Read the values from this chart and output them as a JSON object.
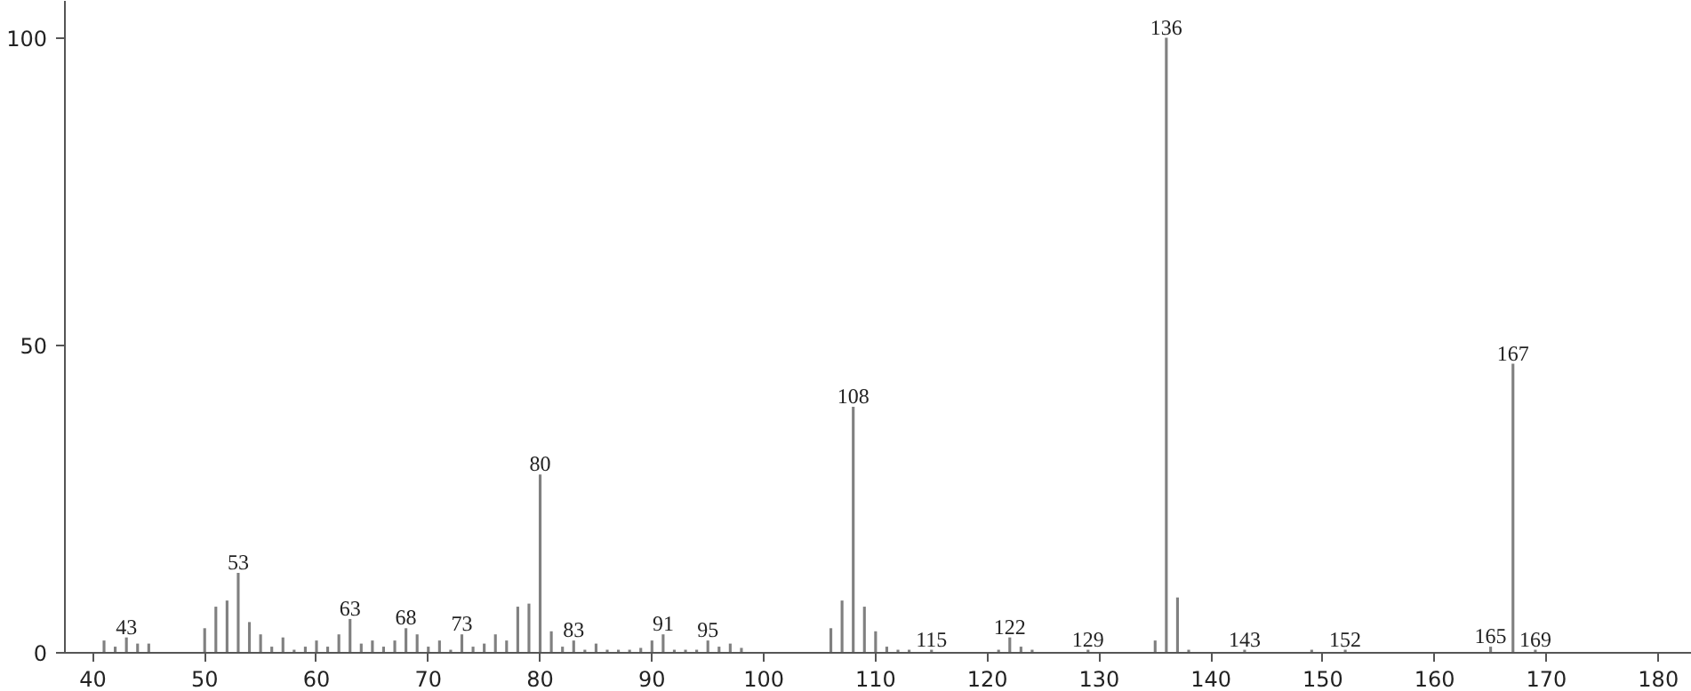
{
  "chart_data": {
    "type": "bar",
    "color": "#808080",
    "x": [
      41,
      42,
      43,
      44,
      45,
      50,
      51,
      52,
      53,
      54,
      55,
      56,
      57,
      58,
      59,
      60,
      61,
      62,
      63,
      64,
      65,
      66,
      67,
      68,
      69,
      70,
      71,
      72,
      73,
      74,
      75,
      76,
      77,
      78,
      79,
      80,
      81,
      82,
      83,
      84,
      85,
      86,
      87,
      88,
      89,
      90,
      91,
      92,
      93,
      94,
      95,
      96,
      97,
      98,
      106,
      107,
      108,
      109,
      110,
      111,
      112,
      113,
      115,
      121,
      122,
      123,
      124,
      129,
      135,
      136,
      137,
      138,
      143,
      149,
      152,
      165,
      167,
      169
    ],
    "values": [
      2,
      1,
      2.5,
      1.5,
      1.5,
      4,
      7.5,
      8.5,
      13,
      5,
      3,
      1,
      2.5,
      0.5,
      1,
      2,
      1,
      3,
      5.5,
      1.5,
      2,
      1,
      2,
      4,
      3,
      1,
      2,
      0.5,
      3,
      1,
      1.5,
      3,
      2,
      7.5,
      8,
      29,
      3.5,
      1,
      2,
      0.5,
      1.5,
      0.5,
      0.5,
      0.5,
      0.8,
      2,
      3,
      0.5,
      0.5,
      0.5,
      2,
      1,
      1.5,
      0.8,
      4,
      8.5,
      40,
      7.5,
      3.5,
      1,
      0.5,
      0.5,
      0.5,
      0.5,
      2.5,
      1,
      0.5,
      0.5,
      2,
      100,
      9,
      0.5,
      0.5,
      0.5,
      0.5,
      1,
      47,
      0.5
    ],
    "xlim": [
      37.5,
      183
    ],
    "ylim": [
      0,
      106
    ],
    "xticks": [
      40,
      50,
      60,
      70,
      80,
      90,
      100,
      110,
      120,
      130,
      140,
      150,
      160,
      170,
      180
    ],
    "yticks": [
      0,
      50,
      100
    ],
    "grid": false,
    "annotations": [
      {
        "text": "43",
        "x": 43,
        "y": 2.5
      },
      {
        "text": "53",
        "x": 53,
        "y": 13
      },
      {
        "text": "63",
        "x": 63,
        "y": 5.5
      },
      {
        "text": "68",
        "x": 68,
        "y": 4
      },
      {
        "text": "73",
        "x": 73,
        "y": 3
      },
      {
        "text": "80",
        "x": 80,
        "y": 29
      },
      {
        "text": "83",
        "x": 83,
        "y": 2
      },
      {
        "text": "91",
        "x": 91,
        "y": 3
      },
      {
        "text": "95",
        "x": 95,
        "y": 2
      },
      {
        "text": "108",
        "x": 108,
        "y": 40
      },
      {
        "text": "115",
        "x": 115,
        "y": 0.5
      },
      {
        "text": "122",
        "x": 122,
        "y": 2.5
      },
      {
        "text": "129",
        "x": 129,
        "y": 0.5
      },
      {
        "text": "136",
        "x": 136,
        "y": 100
      },
      {
        "text": "143",
        "x": 143,
        "y": 0.5
      },
      {
        "text": "152",
        "x": 152,
        "y": 0.5
      },
      {
        "text": "165",
        "x": 165,
        "y": 1
      },
      {
        "text": "167",
        "x": 167,
        "y": 47
      },
      {
        "text": "169",
        "x": 169,
        "y": 0.5
      }
    ]
  }
}
